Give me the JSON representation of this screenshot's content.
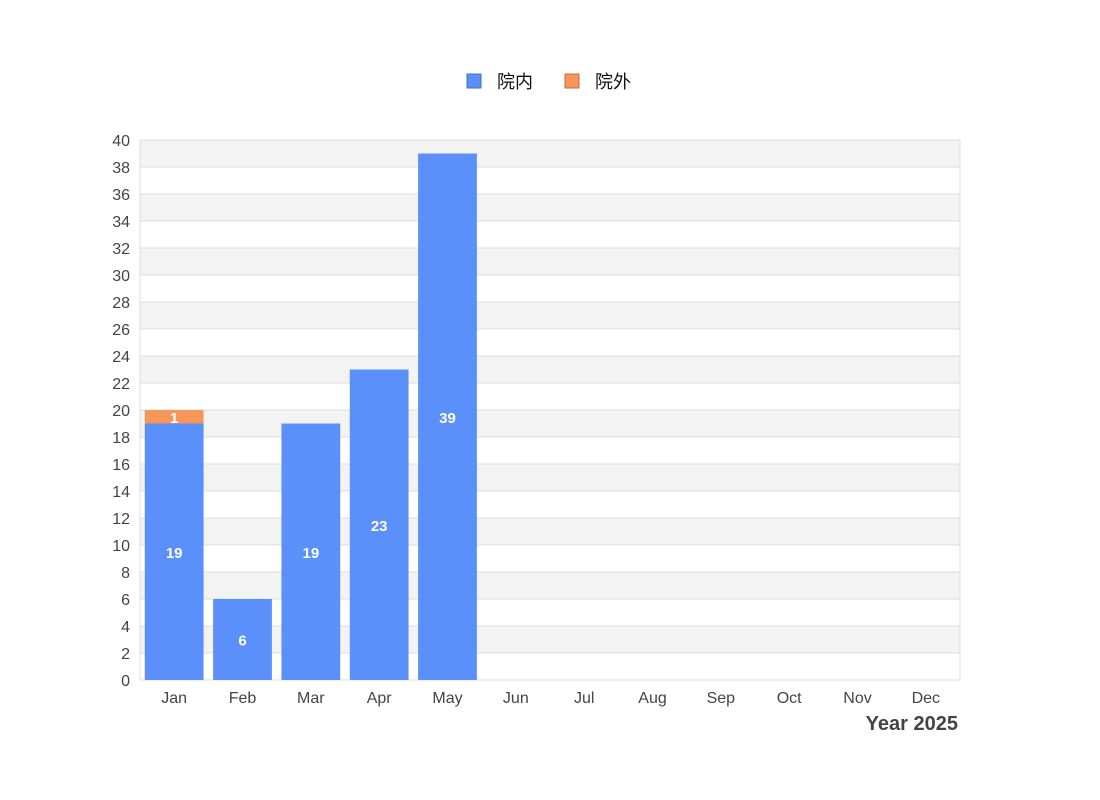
{
  "chart_data": {
    "type": "bar",
    "stacked": true,
    "categories": [
      "Jan",
      "Feb",
      "Mar",
      "Apr",
      "May",
      "Jun",
      "Jul",
      "Aug",
      "Sep",
      "Oct",
      "Nov",
      "Dec"
    ],
    "series": [
      {
        "name": "院内",
        "color": "#5b8ff9",
        "values": [
          19,
          6,
          19,
          23,
          39,
          0,
          0,
          0,
          0,
          0,
          0,
          0
        ]
      },
      {
        "name": "院外",
        "color": "#f5965a",
        "values": [
          1,
          0,
          0,
          0,
          0,
          0,
          0,
          0,
          0,
          0,
          0,
          0
        ]
      }
    ],
    "xlabel": "Year 2025",
    "ylabel": "",
    "ylim": [
      0,
      40
    ],
    "ytick_step": 2,
    "grid": true,
    "grid_style": "alternating-bands",
    "legend_position": "top-center",
    "data_labels": true
  }
}
